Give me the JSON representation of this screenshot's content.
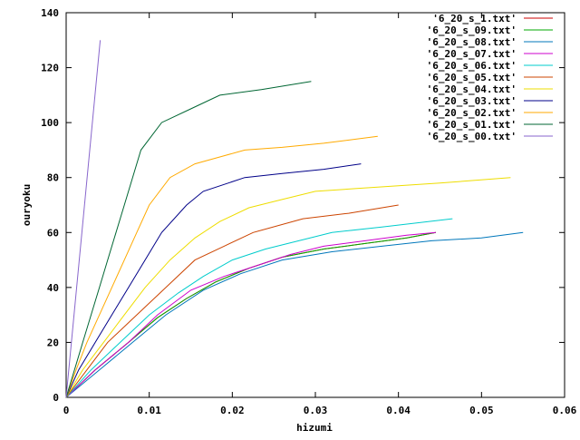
{
  "chart_data": {
    "type": "line",
    "title": "",
    "xlabel": "hizumi",
    "ylabel": "ouryoku",
    "xlim": [
      0,
      0.06
    ],
    "ylim": [
      0,
      140
    ],
    "x_ticks": [
      0,
      0.01,
      0.02,
      0.03,
      0.04,
      0.05,
      0.06
    ],
    "x_tick_labels": [
      "0",
      "0.01",
      "0.02",
      "0.03",
      "0.04",
      "0.05",
      "0.06"
    ],
    "y_ticks": [
      0,
      20,
      40,
      60,
      80,
      100,
      120,
      140
    ],
    "y_tick_labels": [
      "0",
      "20",
      "40",
      "60",
      "80",
      "100",
      "120",
      "140"
    ],
    "grid": false,
    "legend_position": "top-right",
    "series": [
      {
        "name": "'6_20_s_1.txt'",
        "color": "#cc0000",
        "x": [
          0,
          0.0035,
          0.0075,
          0.011,
          0.0145,
          0.018,
          0.022,
          0.026,
          0.031,
          0.036,
          0.041,
          0.0445
        ],
        "y": [
          0,
          10,
          20,
          29,
          36,
          42,
          47,
          51,
          54,
          56,
          58,
          60
        ]
      },
      {
        "name": "'6_20_s_09.txt'",
        "color": "#00aa00",
        "x": [
          0,
          0.0035,
          0.0075,
          0.011,
          0.0145,
          0.018,
          0.022,
          0.026,
          0.031,
          0.036,
          0.041,
          0.0445
        ],
        "y": [
          0,
          10,
          20,
          29,
          36,
          42,
          47,
          51,
          54,
          56,
          58,
          60
        ]
      },
      {
        "name": "'6_20_s_08.txt'",
        "color": "#0077bb",
        "x": [
          0,
          0.004,
          0.008,
          0.012,
          0.0165,
          0.021,
          0.026,
          0.032,
          0.038,
          0.044,
          0.05,
          0.055
        ],
        "y": [
          0,
          10,
          20,
          30,
          39,
          45,
          50,
          53,
          55,
          57,
          58,
          60
        ]
      },
      {
        "name": "'6_20_s_07.txt'",
        "color": "#cc00cc",
        "x": [
          0,
          0.0035,
          0.0075,
          0.011,
          0.015,
          0.019,
          0.023,
          0.027,
          0.031,
          0.036,
          0.041,
          0.0445
        ],
        "y": [
          0,
          10,
          20,
          30,
          39,
          44,
          48,
          52,
          55,
          57,
          59,
          60
        ]
      },
      {
        "name": "'6_20_s_06.txt'",
        "color": "#00cccc",
        "x": [
          0,
          0.003,
          0.0065,
          0.01,
          0.0135,
          0.0165,
          0.02,
          0.024,
          0.028,
          0.032,
          0.038,
          0.0465
        ],
        "y": [
          0,
          10,
          20,
          30,
          38,
          44,
          50,
          54,
          57,
          60,
          62,
          65
        ]
      },
      {
        "name": "'6_20_s_05.txt'",
        "color": "#cc4400",
        "x": [
          0,
          0.0025,
          0.005,
          0.0085,
          0.012,
          0.0155,
          0.019,
          0.0225,
          0.0285,
          0.034,
          0.04
        ],
        "y": [
          0,
          10,
          20,
          30,
          40,
          50,
          55,
          60,
          65,
          67,
          70
        ]
      },
      {
        "name": "'6_20_s_04.txt'",
        "color": "#eedd00",
        "x": [
          0,
          0.002,
          0.0045,
          0.007,
          0.0095,
          0.0125,
          0.0155,
          0.0185,
          0.022,
          0.026,
          0.03,
          0.035,
          0.04,
          0.045,
          0.0535
        ],
        "y": [
          0,
          10,
          20,
          30,
          40,
          50,
          58,
          64,
          69,
          72,
          75,
          76,
          77,
          78,
          80
        ]
      },
      {
        "name": "'6_20_s_03.txt'",
        "color": "#000088",
        "x": [
          0,
          0.0015,
          0.0035,
          0.0055,
          0.0075,
          0.0095,
          0.0115,
          0.0145,
          0.0165,
          0.0195,
          0.0215,
          0.026,
          0.031,
          0.0355
        ],
        "y": [
          0,
          10,
          20,
          30,
          40,
          50,
          60,
          70,
          75,
          78,
          80,
          81.5,
          83,
          85
        ]
      },
      {
        "name": "'6_20_s_02.txt'",
        "color": "#ffaa00",
        "x": [
          0,
          0.0012,
          0.0025,
          0.004,
          0.0055,
          0.007,
          0.0085,
          0.01,
          0.0125,
          0.0155,
          0.0185,
          0.0215,
          0.026,
          0.031,
          0.0375
        ],
        "y": [
          0,
          10,
          20,
          30,
          40,
          50,
          60,
          70,
          80,
          85,
          87.5,
          90,
          91,
          92.5,
          95
        ]
      },
      {
        "name": "'6_20_s_01.txt'",
        "color": "#006633",
        "x": [
          0,
          0.001,
          0.002,
          0.003,
          0.004,
          0.005,
          0.006,
          0.007,
          0.009,
          0.0115,
          0.015,
          0.0185,
          0.0235,
          0.0295
        ],
        "y": [
          0,
          10,
          20,
          30,
          40,
          50,
          60,
          70,
          90,
          100,
          105,
          110,
          112,
          115
        ]
      },
      {
        "name": "'6_20_s_00.txt'",
        "color": "#8866cc",
        "x": [
          0,
          0.0041
        ],
        "y": [
          0,
          130
        ]
      }
    ]
  }
}
